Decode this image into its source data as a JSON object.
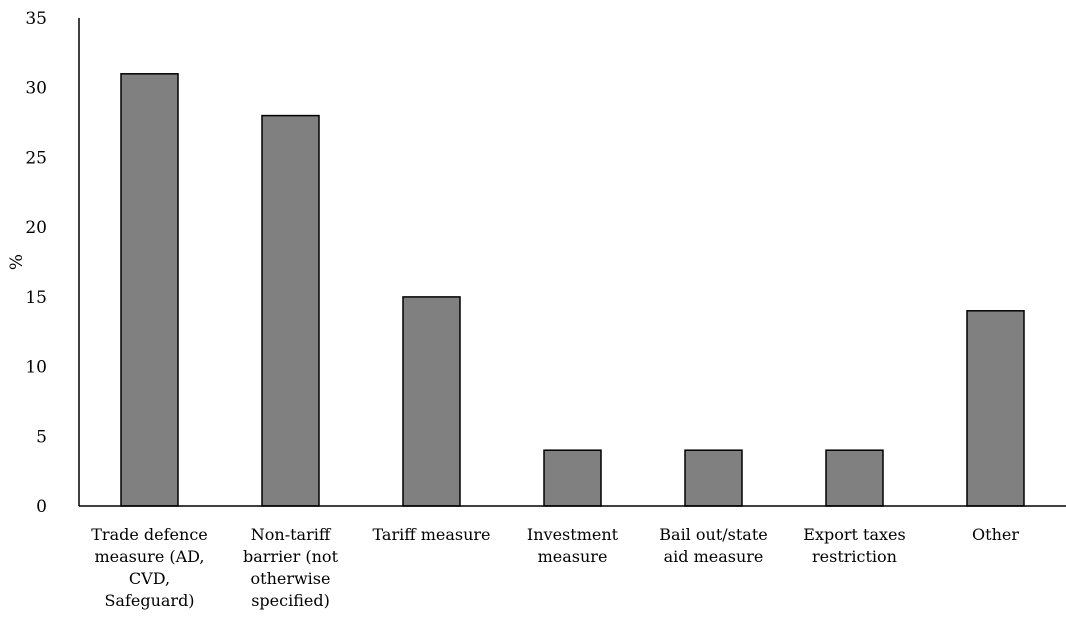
{
  "chart_data": {
    "type": "bar",
    "categories": [
      "Trade defence measure (AD, CVD, Safeguard)",
      "Non-tariff barrier (not otherwise specified)",
      "Tariff measure",
      "Investment measure",
      "Bail out/state aid measure",
      "Export taxes restriction",
      "Other"
    ],
    "category_lines": [
      [
        "Trade defence",
        "measure (AD,",
        "CVD,",
        "Safeguard)"
      ],
      [
        "Non-tariff",
        "barrier (not",
        "otherwise",
        "specified)"
      ],
      [
        "Tariff measure"
      ],
      [
        "Investment",
        "measure"
      ],
      [
        "Bail out/state",
        "aid measure"
      ],
      [
        "Export taxes",
        "restriction"
      ],
      [
        "Other"
      ]
    ],
    "values": [
      31,
      28,
      15,
      4,
      4,
      4,
      14
    ],
    "title": "",
    "xlabel": "",
    "ylabel": "%",
    "ylim": [
      0,
      35
    ],
    "yticks": [
      0,
      5,
      10,
      15,
      20,
      25,
      30,
      35
    ],
    "grid": false,
    "legend": "none",
    "bar_color": "#808080",
    "bar_edge_color": "#000000"
  }
}
